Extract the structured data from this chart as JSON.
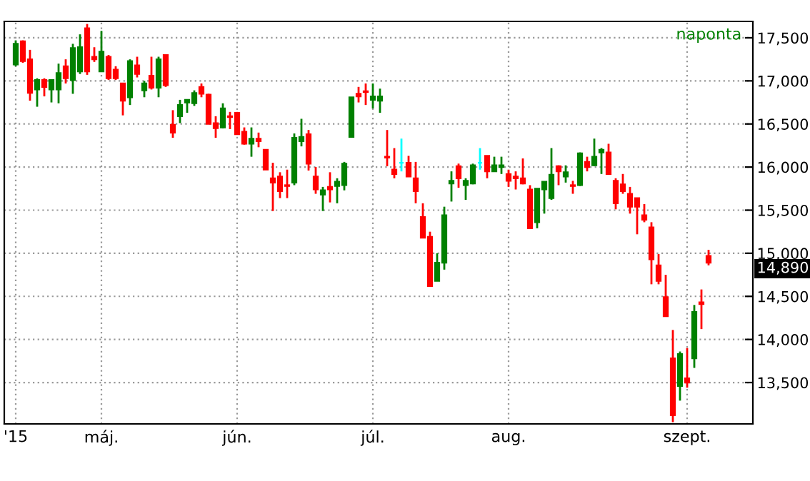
{
  "chart_data": {
    "type": "candlestick",
    "subtitle": "naponta",
    "categories": [
      "'15",
      null,
      null,
      null,
      null,
      null,
      null,
      null,
      null,
      null,
      null,
      null,
      "máj.",
      null,
      null,
      null,
      null,
      null,
      null,
      null,
      null,
      null,
      null,
      null,
      null,
      null,
      null,
      null,
      null,
      null,
      null,
      "jún.",
      null,
      null,
      null,
      null,
      null,
      null,
      null,
      null,
      null,
      null,
      null,
      null,
      null,
      null,
      null,
      null,
      null,
      null,
      "júl.",
      null,
      null,
      null,
      null,
      null,
      null,
      null,
      null,
      null,
      null,
      null,
      null,
      null,
      null,
      null,
      null,
      null,
      null,
      "aug.",
      null,
      null,
      null,
      null,
      null,
      null,
      null,
      null,
      null,
      null,
      null,
      null,
      null,
      null,
      null,
      null,
      null,
      null,
      null,
      null,
      null,
      null,
      null,
      null,
      "szept.",
      null,
      null,
      null
    ],
    "ohlc": [
      [
        17190,
        17470,
        17170,
        17430
      ],
      [
        17460,
        17470,
        17210,
        17230
      ],
      [
        17250,
        17360,
        16770,
        16860
      ],
      [
        16900,
        17030,
        16700,
        17010
      ],
      [
        17010,
        17030,
        16820,
        16930
      ],
      [
        16900,
        17010,
        16750,
        17010
      ],
      [
        16900,
        17200,
        16740,
        17090
      ],
      [
        17170,
        17250,
        16970,
        17030
      ],
      [
        17010,
        17430,
        16850,
        17380
      ],
      [
        17110,
        17540,
        17080,
        17390
      ],
      [
        17610,
        17660,
        17070,
        17110
      ],
      [
        17280,
        17390,
        17220,
        17250
      ],
      [
        17110,
        17580,
        17110,
        17340
      ],
      [
        17280,
        17300,
        17010,
        17030
      ],
      [
        17130,
        17170,
        17010,
        17030
      ],
      [
        16970,
        16970,
        16600,
        16770
      ],
      [
        16810,
        17250,
        16720,
        17230
      ],
      [
        17180,
        17280,
        17040,
        17080
      ],
      [
        16890,
        17000,
        16810,
        16970
      ],
      [
        17060,
        17280,
        16900,
        16920
      ],
      [
        16920,
        17280,
        16810,
        17250
      ],
      [
        17300,
        17300,
        16930,
        16950
      ],
      [
        16490,
        16660,
        16340,
        16400
      ],
      [
        16590,
        16780,
        16510,
        16720
      ],
      [
        16750,
        16780,
        16630,
        16780
      ],
      [
        16740,
        16890,
        16710,
        16860
      ],
      [
        16930,
        16970,
        16810,
        16850
      ],
      [
        16840,
        16850,
        16500,
        16500
      ],
      [
        16510,
        16590,
        16340,
        16450
      ],
      [
        16460,
        16740,
        16450,
        16680
      ],
      [
        16590,
        16640,
        16440,
        16580
      ],
      [
        16630,
        16640,
        16380,
        16380
      ],
      [
        16410,
        16460,
        16260,
        16270
      ],
      [
        16270,
        16460,
        16120,
        16330
      ],
      [
        16330,
        16400,
        16230,
        16300
      ],
      [
        16200,
        16200,
        15970,
        15970
      ],
      [
        15870,
        16050,
        15490,
        15820
      ],
      [
        15890,
        15940,
        15640,
        15720
      ],
      [
        15790,
        15970,
        15640,
        15780
      ],
      [
        15820,
        16390,
        15790,
        16340
      ],
      [
        16300,
        16560,
        16240,
        16350
      ],
      [
        16380,
        16430,
        15960,
        16040
      ],
      [
        15890,
        16000,
        15690,
        15740
      ],
      [
        15680,
        15770,
        15490,
        15730
      ],
      [
        15770,
        15940,
        15590,
        15740
      ],
      [
        15780,
        15870,
        15580,
        15830
      ],
      [
        15790,
        16060,
        15730,
        16040
      ],
      [
        16350,
        16810,
        16340,
        16810
      ],
      [
        16850,
        16930,
        16750,
        16820
      ],
      [
        16880,
        16970,
        16720,
        16870
      ],
      [
        16780,
        16970,
        16680,
        16820
      ],
      [
        16770,
        16910,
        16630,
        16820
      ],
      [
        16120,
        16430,
        16010,
        16110
      ],
      [
        15970,
        16220,
        15870,
        15920
      ],
      [
        16050,
        16330,
        15950,
        16050
      ],
      [
        16050,
        16130,
        15890,
        15890
      ],
      [
        15870,
        16060,
        15580,
        15720
      ],
      [
        15420,
        15580,
        15180,
        15180
      ],
      [
        15190,
        15250,
        14620,
        14620
      ],
      [
        14680,
        15000,
        14680,
        14890
      ],
      [
        14890,
        15540,
        14810,
        15440
      ],
      [
        15810,
        15950,
        15600,
        15840
      ],
      [
        16010,
        16040,
        15760,
        15870
      ],
      [
        15790,
        15870,
        15620,
        15840
      ],
      [
        15810,
        16040,
        15800,
        16020
      ],
      [
        16050,
        16220,
        15970,
        16050
      ],
      [
        16130,
        16130,
        15870,
        15950
      ],
      [
        15950,
        16120,
        15950,
        16020
      ],
      [
        16000,
        16120,
        15920,
        16020
      ],
      [
        15920,
        15970,
        15770,
        15840
      ],
      [
        15890,
        15950,
        15740,
        15870
      ],
      [
        15870,
        16100,
        15800,
        15810
      ],
      [
        15740,
        15790,
        15290,
        15290
      ],
      [
        15360,
        15750,
        15290,
        15750
      ],
      [
        15740,
        15830,
        15460,
        15830
      ],
      [
        15640,
        16220,
        15620,
        15910
      ],
      [
        16010,
        16020,
        15790,
        15950
      ],
      [
        15890,
        16020,
        15820,
        15940
      ],
      [
        15790,
        15840,
        15690,
        15780
      ],
      [
        15790,
        16170,
        15780,
        16160
      ],
      [
        16060,
        16120,
        15950,
        16000
      ],
      [
        16020,
        16330,
        16010,
        16120
      ],
      [
        16170,
        16220,
        15920,
        16200
      ],
      [
        16170,
        16270,
        15920,
        15920
      ],
      [
        15840,
        15870,
        15510,
        15580
      ],
      [
        15800,
        15920,
        15690,
        15720
      ],
      [
        15690,
        15770,
        15460,
        15540
      ],
      [
        15640,
        15640,
        15220,
        15540
      ],
      [
        15440,
        15570,
        15360,
        15390
      ],
      [
        15300,
        15360,
        14640,
        14930
      ],
      [
        14860,
        14990,
        14640,
        14680
      ],
      [
        14490,
        14750,
        14270,
        14270
      ],
      [
        13780,
        14110,
        13040,
        13120
      ],
      [
        13460,
        13860,
        13290,
        13830
      ],
      [
        13550,
        13900,
        13440,
        13500
      ],
      [
        13780,
        14400,
        13670,
        14320
      ],
      [
        14430,
        14580,
        14120,
        14410
      ],
      [
        14970,
        15040,
        14860,
        14890
      ]
    ],
    "colors": [
      "#008000",
      "#ff0000",
      "#ff0000",
      "#008000",
      "#ff0000",
      "#008000",
      "#008000",
      "#ff0000",
      "#008000",
      "#008000",
      "#ff0000",
      "#ff0000",
      "#008000",
      "#ff0000",
      "#ff0000",
      "#ff0000",
      "#008000",
      "#ff0000",
      "#008000",
      "#ff0000",
      "#008000",
      "#ff0000",
      "#ff0000",
      "#008000",
      "#008000",
      "#008000",
      "#ff0000",
      "#ff0000",
      "#ff0000",
      "#008000",
      "#ff0000",
      "#ff0000",
      "#ff0000",
      "#008000",
      "#ff0000",
      "#ff0000",
      "#ff0000",
      "#ff0000",
      "#ff0000",
      "#008000",
      "#008000",
      "#ff0000",
      "#ff0000",
      "#008000",
      "#ff0000",
      "#008000",
      "#008000",
      "#008000",
      "#ff0000",
      "#ff0000",
      "#008000",
      "#008000",
      "#ff0000",
      "#ff0000",
      "#00ffff",
      "#ff0000",
      "#ff0000",
      "#ff0000",
      "#ff0000",
      "#008000",
      "#008000",
      "#008000",
      "#ff0000",
      "#008000",
      "#008000",
      "#00ffff",
      "#ff0000",
      "#008000",
      "#008000",
      "#ff0000",
      "#ff0000",
      "#ff0000",
      "#ff0000",
      "#008000",
      "#008000",
      "#008000",
      "#ff0000",
      "#008000",
      "#ff0000",
      "#008000",
      "#ff0000",
      "#008000",
      "#008000",
      "#ff0000",
      "#ff0000",
      "#ff0000",
      "#ff0000",
      "#ff0000",
      "#ff0000",
      "#ff0000",
      "#ff0000",
      "#ff0000",
      "#ff0000",
      "#008000",
      "#ff0000",
      "#008000",
      "#ff0000",
      "#ff0000"
    ],
    "ylim": [
      13020,
      17690
    ],
    "yticks": [
      {
        "value": 13500,
        "label": "13,500"
      },
      {
        "value": 14000,
        "label": "14,000"
      },
      {
        "value": 14500,
        "label": "14,500"
      },
      {
        "value": 15000,
        "label": "15,000"
      },
      {
        "value": 15500,
        "label": "15,500"
      },
      {
        "value": 16000,
        "label": "16,000"
      },
      {
        "value": 16500,
        "label": "16,500"
      },
      {
        "value": 17000,
        "label": "17,000"
      },
      {
        "value": 17500,
        "label": "17,500"
      }
    ],
    "grid": true,
    "annotations": [
      "14,890"
    ]
  }
}
